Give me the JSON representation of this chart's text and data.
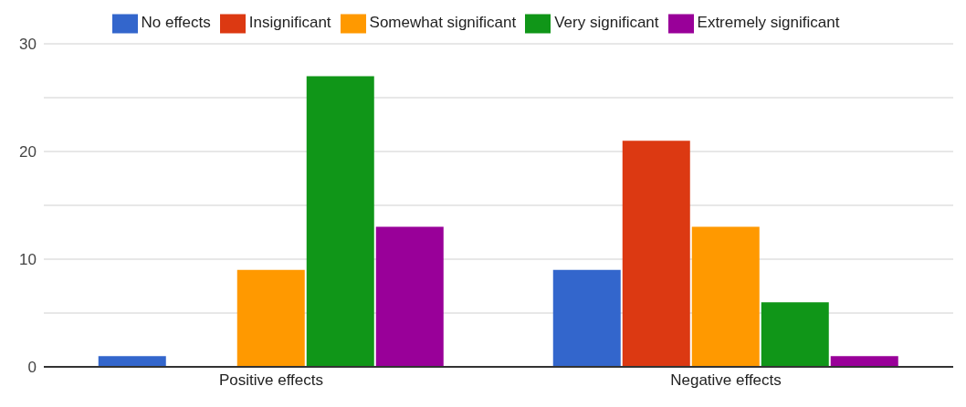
{
  "chart_data": {
    "type": "bar",
    "categories": [
      "Positive effects",
      "Negative effects"
    ],
    "series": [
      {
        "name": "No effects",
        "color": "#3366cc",
        "values": [
          1,
          9
        ]
      },
      {
        "name": "Insignificant",
        "color": "#dc3912",
        "values": [
          0,
          21
        ]
      },
      {
        "name": "Somewhat significant",
        "color": "#ff9900",
        "values": [
          9,
          13
        ]
      },
      {
        "name": "Very significant",
        "color": "#109618",
        "values": [
          27,
          6
        ]
      },
      {
        "name": "Extremely significant",
        "color": "#990099",
        "values": [
          13,
          1
        ]
      }
    ],
    "ylim": [
      0,
      30
    ],
    "yticks": [
      0,
      {
        "value": 5,
        "label": null
      },
      10,
      {
        "value": 15,
        "label": null
      },
      20,
      {
        "value": 25,
        "label": null
      },
      30
    ],
    "grid": "y",
    "legend": "top"
  }
}
